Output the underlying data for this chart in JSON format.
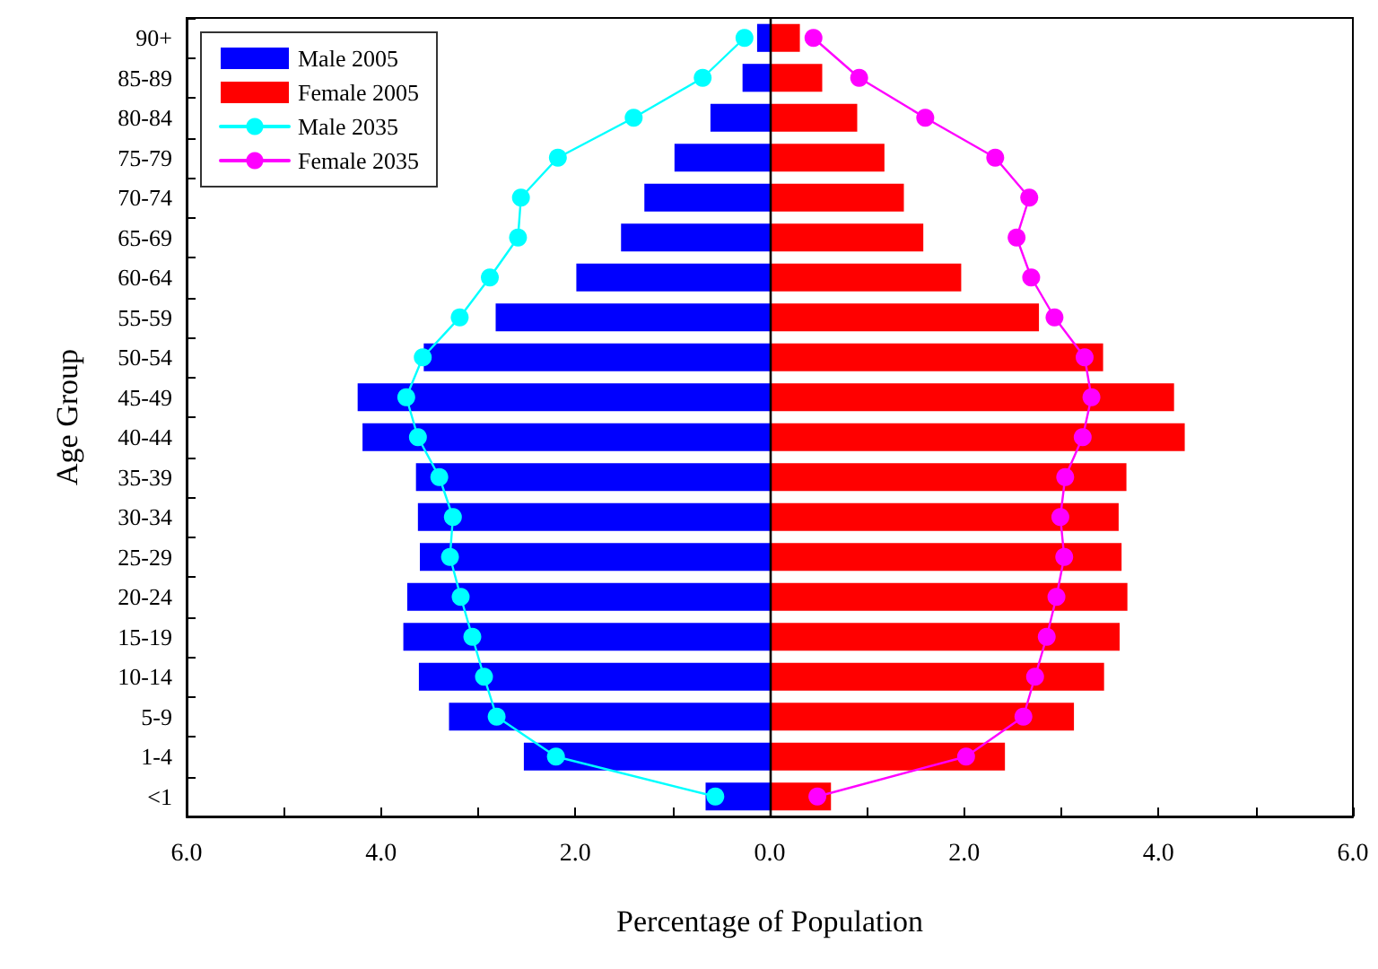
{
  "chart_data": {
    "type": "bar",
    "orientation": "horizontal",
    "xlabel": "Percentage of Population",
    "ylabel": "Age Group",
    "categories": [
      "90+",
      "85-89",
      "80-84",
      "75-79",
      "70-74",
      "65-69",
      "60-64",
      "55-59",
      "50-54",
      "45-49",
      "40-44",
      "35-39",
      "30-34",
      "25-29",
      "20-24",
      "15-19",
      "10-14",
      "5-9",
      "1-4",
      "<1"
    ],
    "series": [
      {
        "name": "Male 2005",
        "color": "#0000ff",
        "values": [
          -0.13,
          -0.28,
          -0.61,
          -0.98,
          -1.29,
          -1.53,
          -1.99,
          -2.82,
          -3.56,
          -4.24,
          -4.19,
          -3.64,
          -3.62,
          -3.6,
          -3.73,
          -3.77,
          -3.61,
          -3.3,
          -2.53,
          -0.66
        ]
      },
      {
        "name": "Female 2005",
        "color": "#ff0000",
        "values": [
          0.31,
          0.54,
          0.9,
          1.18,
          1.38,
          1.58,
          1.97,
          2.77,
          3.43,
          4.16,
          4.27,
          3.67,
          3.59,
          3.62,
          3.68,
          3.6,
          3.44,
          3.13,
          2.42,
          0.63
        ]
      },
      {
        "name": "Male 2035",
        "type": "line",
        "color": "#00ffff",
        "marker": "circle",
        "values": [
          -0.26,
          -0.69,
          -1.4,
          -2.18,
          -2.56,
          -2.59,
          -2.88,
          -3.19,
          -3.57,
          -3.74,
          -3.62,
          -3.4,
          -3.26,
          -3.29,
          -3.18,
          -3.06,
          -2.94,
          -2.81,
          -2.2,
          -0.56
        ]
      },
      {
        "name": "Female 2035",
        "type": "line",
        "color": "#ff00ff",
        "marker": "circle",
        "values": [
          0.45,
          0.92,
          1.6,
          2.32,
          2.67,
          2.54,
          2.69,
          2.93,
          3.24,
          3.31,
          3.22,
          3.04,
          2.99,
          3.03,
          2.95,
          2.85,
          2.73,
          2.61,
          2.02,
          0.49
        ]
      }
    ],
    "xlim": [
      -6,
      6
    ],
    "xticks": [
      {
        "value": -6,
        "label": "6.0"
      },
      {
        "value": -5,
        "label": null
      },
      {
        "value": -4,
        "label": "4.0"
      },
      {
        "value": -3,
        "label": null
      },
      {
        "value": -2,
        "label": "2.0"
      },
      {
        "value": -1,
        "label": null
      },
      {
        "value": 0,
        "label": "0.0"
      },
      {
        "value": 1,
        "label": null
      },
      {
        "value": 2,
        "label": "2.0"
      },
      {
        "value": 3,
        "label": null
      },
      {
        "value": 4,
        "label": "4.0"
      },
      {
        "value": 5,
        "label": null
      },
      {
        "value": 6,
        "label": "6.0"
      }
    ],
    "ref_lines": [
      {
        "axis": "x",
        "value": 0,
        "color": "#000000"
      }
    ],
    "stacked": true,
    "legend": "top left",
    "grid": false
  }
}
